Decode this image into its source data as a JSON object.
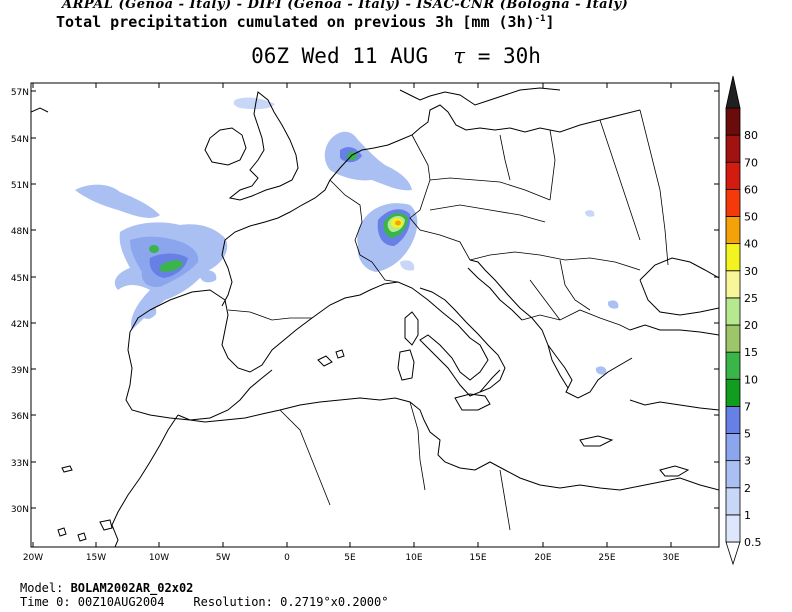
{
  "header": {
    "institutions": "ARPAL (Genoa - Italy)  -  DIFI (Genoa - Italy)  -  ISAC-CNR (Bologna - Italy)",
    "title": "Total precipitation cumulated on previous 3h [mm (3h)",
    "title_exponent": "-1",
    "title_close": "]"
  },
  "subtitle": {
    "time_label": "06Z Wed 11 AUG",
    "tau_symbol": "τ",
    "tau_value": "= 30h"
  },
  "axes": {
    "lat_labels": [
      "57N",
      "54N",
      "51N",
      "48N",
      "45N",
      "42N",
      "39N",
      "36N",
      "33N",
      "30N"
    ],
    "lon_labels": [
      "20W",
      "15W",
      "10W",
      "5W",
      "0",
      "5E",
      "10E",
      "15E",
      "20E",
      "25E",
      "30E"
    ]
  },
  "legend": {
    "levels": [
      "0.5",
      "1",
      "2",
      "3",
      "5",
      "7",
      "10",
      "15",
      "20",
      "25",
      "30",
      "40",
      "50",
      "60",
      "70",
      "80"
    ],
    "colors": [
      "#dde6fa",
      "#c8d6f7",
      "#aabff2",
      "#8ca6ee",
      "#6680e6",
      "#119e1f",
      "#3ab54a",
      "#9dc66a",
      "#b6e88f",
      "#f7f79a",
      "#f3f320",
      "#f5a20a",
      "#f53a0a",
      "#d41b10",
      "#a11211",
      "#6b0b0b",
      "#202020"
    ]
  },
  "footer": {
    "model_label": "Model: ",
    "model_value": "BOLAM2002AR_02x02",
    "time0_label": "Time 0: ",
    "time0_value": "00Z10AUG2004",
    "resolution_label": "Resolution: ",
    "resolution_value": "0.2719°x0.2000°"
  }
}
